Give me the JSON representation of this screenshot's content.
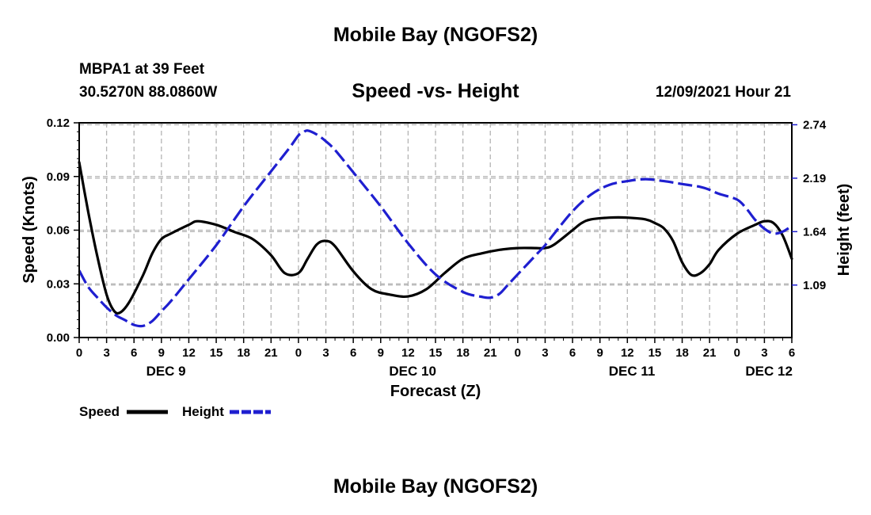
{
  "header": {
    "title": "Mobile Bay (NGOFS2)",
    "station": "MBPA1 at 39 Feet",
    "coords": "30.5270N  88.0860W",
    "subtitle": "Speed -vs- Height",
    "datetime": "12/09/2021 Hour 21",
    "bottom_title": "Mobile Bay (NGOFS2)"
  },
  "chart_data": {
    "type": "line",
    "title": "Speed -vs- Height",
    "xlabel": "Forecast (Z)",
    "ylabel": "Speed (Knots)",
    "y2label": "Height (feet)",
    "xlim": [
      0,
      78
    ],
    "ylim": [
      0,
      0.12
    ],
    "y2lim": [
      0.55,
      2.76
    ],
    "x_ticks": [
      0,
      3,
      6,
      9,
      12,
      15,
      18,
      21,
      24,
      27,
      30,
      33,
      36,
      39,
      42,
      45,
      48,
      51,
      54,
      57,
      60,
      63,
      66,
      69,
      72,
      75,
      78
    ],
    "x_tick_labels": [
      "0",
      "3",
      "6",
      "9",
      "12",
      "15",
      "18",
      "21",
      "0",
      "3",
      "6",
      "9",
      "12",
      "15",
      "18",
      "21",
      "0",
      "3",
      "6",
      "9",
      "12",
      "15",
      "18",
      "21",
      "0",
      "3",
      "6"
    ],
    "y_ticks": [
      0,
      0.03,
      0.06,
      0.09,
      0.12
    ],
    "y_tick_labels": [
      "0.00",
      "0.03",
      "0.06",
      "0.09",
      "0.12"
    ],
    "y2_ticks": [
      1.09,
      1.64,
      2.19,
      2.74
    ],
    "y2_tick_labels": [
      "1.09",
      "1.64",
      "2.19",
      "2.74"
    ],
    "date_labels": [
      {
        "x": 9.5,
        "label": "DEC 9"
      },
      {
        "x": 36.5,
        "label": "DEC 10"
      },
      {
        "x": 60.5,
        "label": "DEC 11"
      },
      {
        "x": 75.5,
        "label": "DEC 12"
      }
    ],
    "series": [
      {
        "name": "Speed",
        "axis": "left",
        "color": "#000000",
        "dash": "solid",
        "x": [
          0,
          1,
          2,
          3,
          3.8,
          4.5,
          5.5,
          7,
          8,
          9,
          10,
          12,
          13,
          15,
          17,
          19,
          21,
          22.5,
          24,
          25,
          26,
          27,
          28,
          30,
          32,
          34,
          36,
          38,
          40,
          42,
          44,
          46,
          48,
          50,
          51,
          52,
          54,
          55,
          56,
          58,
          60,
          62,
          63,
          64,
          65,
          66,
          67,
          68,
          69,
          70,
          72,
          74,
          75,
          76,
          77,
          78
        ],
        "y": [
          0.098,
          0.07,
          0.045,
          0.024,
          0.015,
          0.014,
          0.02,
          0.035,
          0.047,
          0.055,
          0.058,
          0.063,
          0.065,
          0.063,
          0.059,
          0.055,
          0.046,
          0.036,
          0.036,
          0.044,
          0.052,
          0.054,
          0.051,
          0.037,
          0.027,
          0.024,
          0.023,
          0.027,
          0.036,
          0.044,
          0.047,
          0.049,
          0.05,
          0.05,
          0.05,
          0.052,
          0.06,
          0.064,
          0.066,
          0.067,
          0.067,
          0.066,
          0.064,
          0.061,
          0.054,
          0.042,
          0.035,
          0.036,
          0.041,
          0.049,
          0.058,
          0.063,
          0.065,
          0.064,
          0.057,
          0.044
        ]
      },
      {
        "name": "Height",
        "axis": "right",
        "color": "#1f1fd0",
        "dash": "dashed",
        "x": [
          0,
          1,
          2,
          3,
          4,
          5,
          6,
          7,
          8,
          9,
          10,
          12,
          15,
          18,
          21,
          23,
          24,
          24.5,
          25,
          26,
          27,
          28,
          30,
          33,
          36,
          39,
          42,
          44,
          45,
          46,
          47,
          48,
          50,
          51,
          52,
          54,
          56,
          58,
          60,
          62,
          64,
          66,
          68,
          69,
          70,
          72,
          73,
          74,
          75,
          76,
          77,
          78
        ],
        "y": [
          1.24,
          1.07,
          0.96,
          0.86,
          0.78,
          0.73,
          0.68,
          0.67,
          0.72,
          0.82,
          0.92,
          1.15,
          1.5,
          1.9,
          2.26,
          2.5,
          2.63,
          2.66,
          2.68,
          2.64,
          2.57,
          2.48,
          2.25,
          1.9,
          1.52,
          1.2,
          1.02,
          0.97,
          0.96,
          1.0,
          1.1,
          1.2,
          1.4,
          1.5,
          1.62,
          1.85,
          2.02,
          2.12,
          2.16,
          2.18,
          2.16,
          2.13,
          2.1,
          2.07,
          2.03,
          1.97,
          1.88,
          1.76,
          1.67,
          1.62,
          1.64,
          1.7
        ]
      }
    ],
    "legend": [
      {
        "label": "Speed",
        "color": "#000000",
        "dash": "solid"
      },
      {
        "label": "Height",
        "color": "#1f1fd0",
        "dash": "dashed"
      }
    ],
    "legend_position": "bottom-left",
    "grid": true
  }
}
